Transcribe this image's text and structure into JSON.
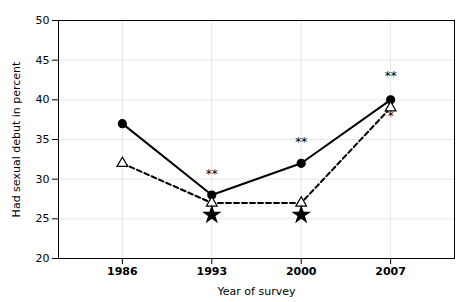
{
  "chart_data": {
    "type": "line",
    "xlabel": "Year of survey",
    "ylabel": "Had sexual debut in percent",
    "x": [
      1986,
      1993,
      2000,
      2007
    ],
    "series": [
      {
        "color": "#000000",
        "values": [
          37,
          28,
          32,
          40
        ],
        "marker": "circle",
        "line_style": "solid"
      },
      {
        "color": "#000000",
        "values": [
          32,
          27,
          27,
          39
        ],
        "marker": "triangle",
        "line_style": "dashed"
      },
      {
        "type": "scatter",
        "color": "#000000",
        "values": [
          null,
          25.5,
          25.5,
          null
        ],
        "marker": "star"
      }
    ],
    "annotations": [
      {
        "x": 1993,
        "y": 30.2,
        "text": "**"
      },
      {
        "x": 2000,
        "y": 34.2,
        "text": "**"
      },
      {
        "x": 2007,
        "y": 42.5,
        "text": "**"
      },
      {
        "x": 2007,
        "y": 37.5,
        "text": "*"
      }
    ],
    "xlim": [
      1981,
      2012
    ],
    "xticks": [
      1986,
      1993,
      2000,
      2007
    ],
    "ylim": [
      20,
      50
    ],
    "yticks": [
      20,
      25,
      30,
      35,
      40,
      45,
      50
    ],
    "grid": true
  }
}
